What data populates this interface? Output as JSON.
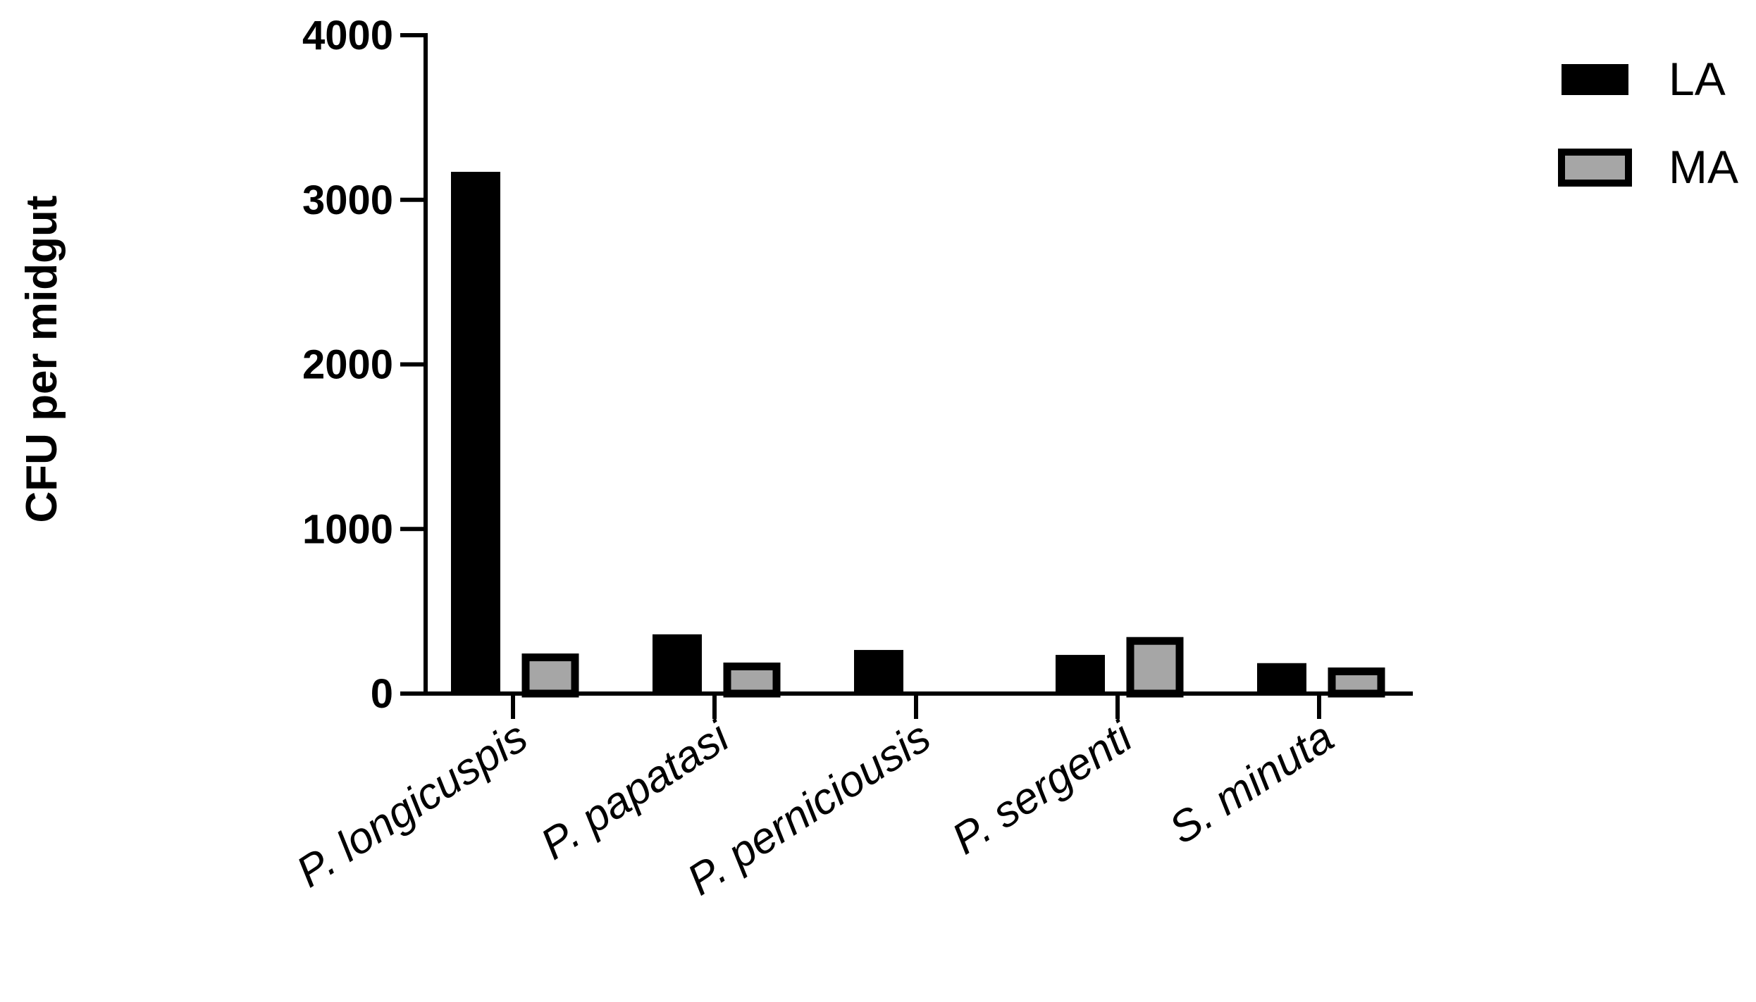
{
  "chart_data": {
    "type": "bar",
    "ylabel": "CFU per midgut",
    "xlabel": "",
    "categories": [
      "P. longicuspis",
      "P. papatasi",
      "P. perniciousis",
      "P. sergenti",
      "S. minuta"
    ],
    "series": [
      {
        "name": "LA",
        "values": [
          3170,
          360,
          265,
          235,
          185
        ],
        "color": "#000000"
      },
      {
        "name": "MA",
        "values": [
          220,
          165,
          0,
          320,
          135
        ],
        "color": "#a6a6a6"
      }
    ],
    "ylim": [
      0,
      4000
    ],
    "yticks": [
      0,
      1000,
      2000,
      3000,
      4000
    ],
    "ytick_labels": [
      "0",
      "1000",
      "2000",
      "3000",
      "4000"
    ],
    "legend_position": "top-right",
    "grid": false
  }
}
